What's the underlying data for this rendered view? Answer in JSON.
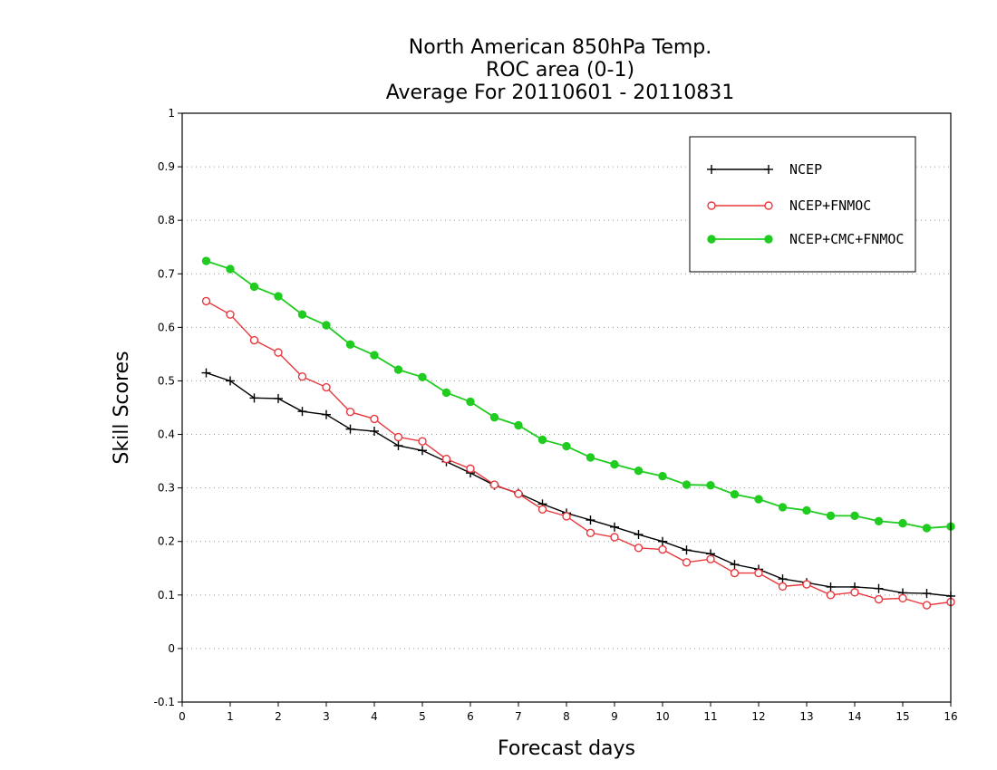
{
  "chart_data": {
    "type": "line",
    "title": [
      "North American 850hPa Temp.",
      "ROC area (0-1)",
      "Average For 20110601 - 20110831"
    ],
    "xlabel": "Forecast days",
    "ylabel": "Skill Scores",
    "xlim": [
      0,
      16
    ],
    "ylim": [
      -0.1,
      1
    ],
    "xticks": [
      "0",
      "1",
      "2",
      "3",
      "4",
      "5",
      "6",
      "7",
      "8",
      "9",
      "10",
      "11",
      "12",
      "13",
      "14",
      "15",
      "16"
    ],
    "yticks": [
      "-0.1",
      "0",
      "0.1",
      "0.2",
      "0.3",
      "0.4",
      "0.5",
      "0.6",
      "0.7",
      "0.8",
      "0.9",
      "1"
    ],
    "grid": true,
    "legend_position": "top-right",
    "x": [
      0.5,
      1,
      1.5,
      2,
      2.5,
      3,
      3.5,
      4,
      4.5,
      5,
      5.5,
      6,
      6.5,
      7,
      7.5,
      8,
      8.5,
      9,
      9.5,
      10,
      10.5,
      11,
      11.5,
      12,
      12.5,
      13,
      13.5,
      14,
      14.5,
      15,
      15.5,
      16
    ],
    "series": [
      {
        "name": "NCEP",
        "color": "#000000",
        "marker": "plus",
        "values": [
          0.515,
          0.5,
          0.468,
          0.467,
          0.443,
          0.437,
          0.41,
          0.406,
          0.379,
          0.37,
          0.349,
          0.328,
          0.305,
          0.29,
          0.27,
          0.253,
          0.24,
          0.227,
          0.213,
          0.2,
          0.184,
          0.177,
          0.157,
          0.148,
          0.13,
          0.123,
          0.115,
          0.115,
          0.112,
          0.104,
          0.103,
          0.098
        ]
      },
      {
        "name": "NCEP+FNMOC",
        "color": "#e8383d",
        "marker": "open-circle",
        "values": [
          0.649,
          0.624,
          0.576,
          0.553,
          0.508,
          0.488,
          0.442,
          0.429,
          0.395,
          0.387,
          0.354,
          0.336,
          0.306,
          0.289,
          0.26,
          0.247,
          0.216,
          0.208,
          0.188,
          0.185,
          0.161,
          0.167,
          0.141,
          0.141,
          0.116,
          0.12,
          0.1,
          0.105,
          0.092,
          0.094,
          0.081,
          0.087
        ]
      },
      {
        "name": "NCEP+CMC+FNMOC",
        "color": "#1fcc1f",
        "marker": "filled-circle",
        "values": [
          0.724,
          0.709,
          0.676,
          0.658,
          0.624,
          0.604,
          0.568,
          0.548,
          0.521,
          0.507,
          0.478,
          0.461,
          0.432,
          0.417,
          0.39,
          0.378,
          0.357,
          0.344,
          0.332,
          0.322,
          0.306,
          0.305,
          0.288,
          0.279,
          0.264,
          0.258,
          0.248,
          0.248,
          0.238,
          0.234,
          0.225,
          0.228
        ]
      }
    ]
  }
}
